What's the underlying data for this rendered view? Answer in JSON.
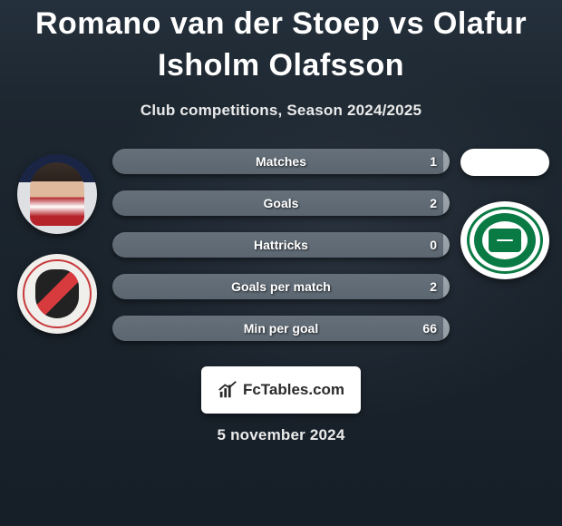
{
  "title": "Romano van der Stoep vs Olafur Isholm Olafsson",
  "subtitle": "Club competitions, Season 2024/2025",
  "date": "5 november 2024",
  "footer_brand": "FcTables.com",
  "colors": {
    "player_a": "#5b6670",
    "player_b": "#929aa2",
    "background_top": "#24303c",
    "background_bottom": "#161e27",
    "text": "#ffffff"
  },
  "bars": [
    {
      "label": "Matches",
      "a": 1,
      "b": 0,
      "right_display": "1",
      "a_pct": 98,
      "b_pct": 2
    },
    {
      "label": "Goals",
      "a": 2,
      "b": 0,
      "right_display": "2",
      "a_pct": 98,
      "b_pct": 2
    },
    {
      "label": "Hattricks",
      "a": 0,
      "b": 0,
      "right_display": "0",
      "a_pct": 98,
      "b_pct": 2
    },
    {
      "label": "Goals per match",
      "a": 2,
      "b": 0,
      "right_display": "2",
      "a_pct": 98,
      "b_pct": 2
    },
    {
      "label": "Min per goal",
      "a": 66,
      "b": 0,
      "right_display": "66",
      "a_pct": 98,
      "b_pct": 2
    }
  ],
  "avatars": {
    "player_a_name": "Romano van der Stoep",
    "player_b_name": "Olafur Isholm Olafsson",
    "club_a_name": "Sparta Rotterdam",
    "club_b_name": "FC Groningen"
  }
}
